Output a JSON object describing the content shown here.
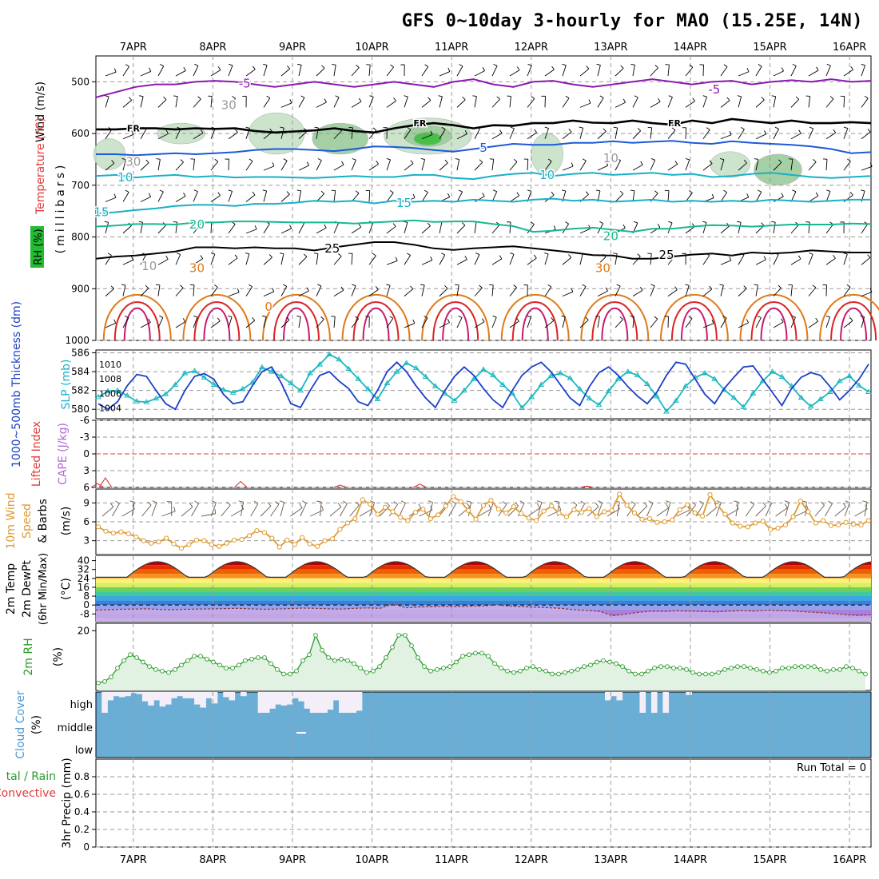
{
  "chart_data": {
    "type": "meteogram",
    "title": "GFS 0~10day 3-hourly for MAO (15.25E, 14N)",
    "x_axis": {
      "labels": [
        "7APR",
        "8APR",
        "9APR",
        "10APR",
        "11APR",
        "12APR",
        "13APR",
        "14APR",
        "15APR",
        "16APR"
      ],
      "range_days": [
        -0.47,
        9.27
      ]
    },
    "colors": {
      "temp_red": "#dd2222",
      "temp_orange": "#e07a18",
      "temp_gold": "#e0a020",
      "teal": "#17b890",
      "cyan": "#17b0c8",
      "blue": "#1c5ad8",
      "purple": "#8c1ab0",
      "rh_green": "#2a9a2a",
      "cloud_blue": "#6aaed6",
      "cape": "#b06ad0",
      "thickness": "#1c3fc8",
      "slp": "#1ab8c0",
      "wind_speed": "#e09a30",
      "cloud_bg": "#f4eef8"
    },
    "upper_air": {
      "ylabel_main": "Wind (m/s)",
      "ylabel_temp": "Temperature (°C)",
      "ylabel_rh": "RH (%)",
      "ylabel_mb": "(millibars)",
      "ylim": [
        1000,
        450
      ],
      "ticks": [
        "500",
        "600",
        "700",
        "800",
        "900",
        "1000"
      ],
      "contour_labels": [
        "-5",
        "-5",
        "FR",
        "FR",
        "FR",
        "5",
        "10",
        "10",
        "15",
        "15",
        "20",
        "20",
        "25",
        "25",
        "30",
        "30",
        "10",
        "30",
        "30",
        "10",
        "0"
      ],
      "isotherms": [
        {
          "temp": -5,
          "color": "purple",
          "p": [
            530,
            520,
            510,
            505,
            505,
            500,
            498,
            500,
            505,
            510,
            505,
            500,
            505,
            510,
            505,
            500,
            505,
            510,
            500,
            495,
            505,
            510,
            500,
            498,
            505,
            510,
            505,
            500,
            495,
            500,
            505,
            500,
            498,
            505,
            500,
            497,
            500,
            495,
            500,
            498
          ]
        },
        {
          "temp": 0,
          "color": "black",
          "p": [
            592,
            592,
            590,
            590,
            592,
            590,
            591,
            590,
            595,
            598,
            596,
            594,
            590,
            595,
            598,
            590,
            584,
            580,
            584,
            590,
            584,
            585,
            580,
            580,
            575,
            579,
            580,
            575,
            580,
            583,
            575,
            580,
            572,
            576,
            580,
            575,
            580,
            580,
            578,
            580
          ]
        },
        {
          "temp": 5,
          "color": "blue",
          "p": [
            640,
            640,
            642,
            640,
            638,
            640,
            638,
            636,
            632,
            630,
            630,
            632,
            634,
            630,
            625,
            626,
            628,
            632,
            635,
            630,
            625,
            620,
            622,
            622,
            618,
            618,
            615,
            618,
            616,
            614,
            618,
            620,
            615,
            618,
            620,
            622,
            625,
            630,
            638,
            636
          ]
        },
        {
          "temp": 10,
          "color": "cyan",
          "p": [
            682,
            680,
            685,
            682,
            680,
            684,
            682,
            685,
            684,
            684,
            685,
            686,
            684,
            682,
            684,
            684,
            680,
            680,
            686,
            688,
            682,
            678,
            676,
            682,
            678,
            676,
            680,
            678,
            676,
            680,
            678,
            684,
            682,
            678,
            676,
            680,
            684,
            686,
            684,
            682
          ]
        },
        {
          "temp": 15,
          "color": "cyan",
          "p": [
            755,
            752,
            748,
            745,
            740,
            738,
            738,
            740,
            736,
            736,
            734,
            730,
            732,
            730,
            735,
            730,
            732,
            730,
            732,
            728,
            730,
            732,
            728,
            726,
            730,
            728,
            732,
            730,
            728,
            732,
            730,
            732,
            730,
            732,
            728,
            730,
            732,
            730,
            728,
            728
          ]
        },
        {
          "temp": 20,
          "color": "teal",
          "p": [
            780,
            778,
            775,
            775,
            776,
            772,
            772,
            770,
            770,
            771,
            772,
            772,
            772,
            774,
            772,
            770,
            768,
            771,
            770,
            770,
            775,
            779,
            790,
            788,
            784,
            782,
            786,
            790,
            784,
            784,
            780,
            777,
            778,
            780,
            778,
            776,
            776,
            776,
            774,
            775
          ]
        },
        {
          "temp": 25,
          "color": "gold",
          "p": [
            842,
            838,
            836,
            832,
            828,
            820,
            820,
            822,
            820,
            822,
            822,
            826,
            820,
            815,
            810,
            810,
            815,
            822,
            825,
            822,
            820,
            818,
            822,
            826,
            830,
            835,
            836,
            842,
            842,
            838,
            834,
            832,
            836,
            830,
            832,
            830,
            826,
            828,
            830,
            830
          ]
        }
      ],
      "rh_zones": [
        {
          "day": -0.3,
          "p": 640,
          "w": 0.4,
          "h": 60,
          "level": 1
        },
        {
          "day": 0.6,
          "p": 600,
          "w": 0.6,
          "h": 40,
          "level": 1
        },
        {
          "day": 1.8,
          "p": 600,
          "w": 0.7,
          "h": 80,
          "level": 1
        },
        {
          "day": 2.6,
          "p": 610,
          "w": 0.7,
          "h": 60,
          "level": 2
        },
        {
          "day": 3.7,
          "p": 605,
          "w": 1.1,
          "h": 70,
          "level": 1
        },
        {
          "day": 3.7,
          "p": 605,
          "w": 0.6,
          "h": 40,
          "level": 2
        },
        {
          "day": 3.7,
          "p": 610,
          "w": 0.35,
          "h": 25,
          "level": 3
        },
        {
          "day": 5.2,
          "p": 640,
          "w": 0.4,
          "h": 80,
          "level": 1
        },
        {
          "day": 7.5,
          "p": 660,
          "w": 0.5,
          "h": 50,
          "level": 1
        },
        {
          "day": 8.1,
          "p": 670,
          "w": 0.6,
          "h": 60,
          "level": 2
        }
      ],
      "heat_cycles": [
        0.05,
        1.05,
        2.05,
        3.05,
        4.05,
        5.05,
        6.05,
        7.05,
        8.05,
        9.05
      ]
    },
    "thickness_slp": {
      "ylabel_left": "1000~500mb Thickness (dm)",
      "ylabel_right": "SLP (mb)",
      "thickness_ticks": [
        "580",
        "582",
        "584",
        "586"
      ],
      "slp_ticks": [
        "1004",
        "1006",
        "1008",
        "1010"
      ],
      "thickness_range": [
        579,
        586.3
      ],
      "thickness": [
        580.6,
        580,
        580.8,
        582.5,
        583.7,
        583.5,
        582,
        580.6,
        580,
        582,
        583.5,
        583.8,
        583.2,
        581.6,
        580.6,
        580.8,
        582.5,
        584,
        584.5,
        582.8,
        580.6,
        580.2,
        582,
        583.6,
        584,
        583,
        582.2,
        580.8,
        580.4,
        582,
        584,
        585,
        584,
        582.5,
        581.2,
        580.2,
        582,
        583.5,
        584.5,
        583.6,
        582.2,
        581,
        580.2,
        582,
        583.6,
        584.5,
        585,
        584,
        582.6,
        581.2,
        580.4,
        582.4,
        583.9,
        584.5,
        583.6,
        582.4,
        581.4,
        580.6,
        581.8,
        583.6,
        585,
        584.8,
        583.2,
        581.6,
        580.6,
        582.2,
        583.4,
        584.5,
        584.6,
        583.2,
        581.8,
        580.4,
        582.2,
        583.4,
        583.9,
        583.6,
        582.4,
        581,
        582,
        583.2,
        584.8
      ],
      "slp": [
        1005.5,
        1006.3,
        1006.4,
        1005.7,
        1004.9,
        1004.8,
        1005.3,
        1005.9,
        1007.2,
        1008.8,
        1009.1,
        1008.2,
        1007.2,
        1006.5,
        1006.1,
        1006.6,
        1007.5,
        1009.6,
        1009.0,
        1008.4,
        1007.4,
        1006.4,
        1008.8,
        1010.0,
        1011.4,
        1010.7,
        1009.4,
        1008.0,
        1006.6,
        1005.2,
        1007.4,
        1009.0,
        1010.2,
        1009.5,
        1008.3,
        1007.0,
        1006.0,
        1005.0,
        1006.4,
        1008.0,
        1009.3,
        1008.5,
        1007.2,
        1006.0,
        1004.0,
        1005.5,
        1007.2,
        1008.4,
        1008.8,
        1008.1,
        1006.6,
        1005.3,
        1004.4,
        1006.3,
        1008.0,
        1009.0,
        1008.5,
        1007.3,
        1005.6,
        1003.5,
        1005.0,
        1007.0,
        1008.2,
        1008.8,
        1008.0,
        1006.5,
        1005.4,
        1004.1,
        1006.0,
        1007.7,
        1009.0,
        1008.3,
        1007.0,
        1005.4,
        1004.2,
        1005.2,
        1006.2,
        1007.7,
        1008.4,
        1007.1,
        1006.2
      ]
    },
    "cape_li": {
      "ylabel_left": "Lifted Index",
      "ylabel_right": "CAPE (J/kg)",
      "ticks": [
        "-6",
        "-3",
        "0",
        "3",
        "6"
      ],
      "ylim": [
        -6,
        6
      ]
    },
    "wind10m": {
      "ylabel1": "10m Wind",
      "ylabel2": "Speed",
      "ylabel3": "& Barbs",
      "unit": "(m/s)",
      "ticks": [
        "3",
        "6",
        "9"
      ],
      "ylim": [
        0.8,
        11.2
      ],
      "speed": [
        5.2,
        4.5,
        4.2,
        4.4,
        4.1,
        3.6,
        3.0,
        2.6,
        2.8,
        3.4,
        2.5,
        1.8,
        2.4,
        3.1,
        3.0,
        2.4,
        2.1,
        2.6,
        3.1,
        3.2,
        3.8,
        4.6,
        4.3,
        3.4,
        2.0,
        3.1,
        2.4,
        3.5,
        2.5,
        2.1,
        3.0,
        3.3,
        4.8,
        5.8,
        6.5,
        9.5,
        8.8,
        7.2,
        8.3,
        7.6,
        6.7,
        6.2,
        7.5,
        8.0,
        6.5,
        7.1,
        8.5,
        10.0,
        9.2,
        7.8,
        6.4,
        8.6,
        9.4,
        8.0,
        7.4,
        8.4,
        7.3,
        6.6,
        6.2,
        7.7,
        8.5,
        7.4,
        6.8,
        7.9,
        7.5,
        8.1,
        6.8,
        7.6,
        7.8,
        10.4,
        8.6,
        7.4,
        6.4,
        6.5,
        5.9,
        6.0,
        6.3,
        7.9,
        8.7,
        7.4,
        6.9,
        10.3,
        8.6,
        7.2,
        5.8,
        5.3,
        5.2,
        5.8,
        6.1,
        4.8,
        5.0,
        5.5,
        6.8,
        9.3,
        7.6,
        5.8,
        6.2,
        5.4,
        5.5,
        5.9,
        5.6,
        5.5,
        6.2
      ],
      "barb_dirs": [
        40,
        60,
        30,
        80,
        50,
        70,
        20,
        90,
        40,
        60,
        10,
        70,
        50,
        30,
        80,
        60,
        45,
        55,
        75,
        35,
        65,
        25,
        85,
        40,
        60,
        50,
        30,
        70,
        45,
        55,
        65,
        35,
        25,
        75,
        50,
        60,
        40,
        80,
        30,
        70,
        55,
        45,
        65,
        35,
        75,
        25,
        85,
        50,
        60,
        40,
        70,
        30,
        80,
        55,
        45,
        65,
        35,
        75,
        25,
        50,
        60,
        40,
        70,
        30,
        80,
        55,
        45,
        65,
        35,
        75,
        25,
        85,
        50,
        60,
        40,
        70,
        30,
        80
      ]
    },
    "temp2m": {
      "ylabel1": "2m Temp",
      "ylabel2": "2m DewPt",
      "ylabel3": "(6hr Min/Max)",
      "unit": "(°C)",
      "ticks": [
        "40",
        "32",
        "24",
        "16",
        "8",
        "0",
        "-8"
      ],
      "ylim": [
        -15,
        44
      ],
      "temp_min": 25,
      "temp_max": 39,
      "peak_days": [
        0.3,
        1.3,
        2.3,
        3.3,
        4.3,
        5.3,
        6.3,
        7.3,
        8.3,
        9.3
      ],
      "dewpoint": [
        -4.5,
        -4.2,
        -3.8,
        -3.6,
        -3.4,
        -4.0,
        -4.2,
        -3.8,
        -3.6,
        -3.5,
        -3.2,
        -3.0,
        -3.5,
        -3.8,
        -3.6,
        -3.2,
        -2.8,
        -3.0,
        -3.4,
        -3.6,
        -3.0,
        -2.6,
        -3.0,
        1.0,
        -2.5,
        -1.8,
        -1.5,
        -1.2,
        -1.4,
        -1.0,
        -0.8,
        0.2,
        -1.0,
        -1.5,
        -2.0,
        -2.4,
        -3.0,
        -4.2,
        -4.8,
        -5.8,
        -9.5,
        -8.2,
        -6.6,
        -5.6,
        -5.8,
        -5.2,
        -5.6,
        -5.8,
        -6.2,
        -5.5,
        -5.0,
        -5.4,
        -4.6,
        -5.0,
        -5.4,
        -6.2,
        -6.8,
        -7.6,
        -8.6,
        -9.4,
        -8.8
      ]
    },
    "rh2m": {
      "ylabel": "2m RH",
      "unit": "(%)",
      "ticks": [
        "20"
      ],
      "ylim": [
        0,
        22.5
      ],
      "values": [
        2.5,
        3,
        4.5,
        7.5,
        10,
        12,
        11,
        9.5,
        8,
        7,
        6.5,
        6,
        7,
        8.5,
        10,
        11.5,
        11.5,
        10.5,
        9.5,
        8.5,
        7.5,
        7.5,
        8.5,
        10,
        10.5,
        11,
        11,
        9,
        7,
        5.5,
        5.5,
        6.5,
        10,
        12,
        18.5,
        13.5,
        11,
        10,
        10.5,
        10,
        9,
        7.5,
        6,
        6.5,
        8,
        11,
        14.5,
        18.5,
        18.5,
        15,
        11,
        8,
        6.5,
        7,
        7.5,
        8,
        9.5,
        11.5,
        12,
        12.5,
        12.5,
        11.5,
        9,
        7.5,
        6.5,
        6,
        6.5,
        7.5,
        8,
        7,
        6.5,
        5.5,
        5.5,
        6,
        6.5,
        7,
        8,
        8.5,
        9.5,
        10,
        9.5,
        9,
        8,
        6.5,
        5.5,
        5.5,
        6.5,
        7.5,
        8,
        8,
        7.5,
        7.5,
        7,
        6,
        5.5,
        5.5,
        5.5,
        6,
        7,
        7.5,
        8,
        8,
        7.5,
        7,
        6.5,
        6,
        6.5,
        7.5,
        7.5,
        8,
        8,
        8,
        8,
        7,
        6.5,
        7,
        7,
        8,
        7.5,
        6.5,
        5.5
      ]
    },
    "cloud": {
      "ylabel": "Cloud Cover",
      "unit": "(%)",
      "levels": [
        "high",
        "middle",
        "low"
      ],
      "high_pct": [
        100,
        0,
        60,
        80,
        75,
        80,
        95,
        90,
        55,
        35,
        60,
        30,
        40,
        70,
        80,
        70,
        70,
        40,
        25,
        70,
        45,
        100,
        75,
        60,
        100,
        80,
        100,
        100,
        0,
        0,
        20,
        40,
        35,
        40,
        70,
        55,
        20,
        0,
        0,
        0,
        15,
        60,
        0,
        0,
        0,
        10,
        100,
        100,
        100,
        100,
        100,
        100,
        100,
        100,
        100,
        100,
        100,
        100,
        100,
        100,
        100,
        100,
        100,
        100,
        100,
        100,
        100,
        100,
        100,
        100,
        100,
        100,
        100,
        100,
        100,
        100,
        100,
        100,
        100,
        100,
        100,
        100,
        100,
        100,
        100,
        100,
        100,
        100,
        60,
        80,
        60,
        100,
        100,
        100,
        0,
        100,
        0,
        100,
        0,
        100,
        100,
        100,
        85,
        100,
        100,
        100,
        100,
        100,
        100,
        100,
        100,
        100,
        100,
        100,
        100,
        100,
        100,
        100,
        100,
        100,
        100,
        100,
        100,
        100,
        100,
        100,
        100,
        100,
        100,
        100,
        100,
        100,
        100,
        100
      ]
    },
    "precip": {
      "ylabel1": "tal / Rain",
      "ylabel2": "Convective",
      "ylabel_right": "3hr Precip (mm)",
      "ticks": [
        "0",
        "0.2",
        "0.4",
        "0.6",
        "0.8"
      ],
      "ylim": [
        0,
        1
      ],
      "run_total": "Run Total = 0"
    }
  }
}
